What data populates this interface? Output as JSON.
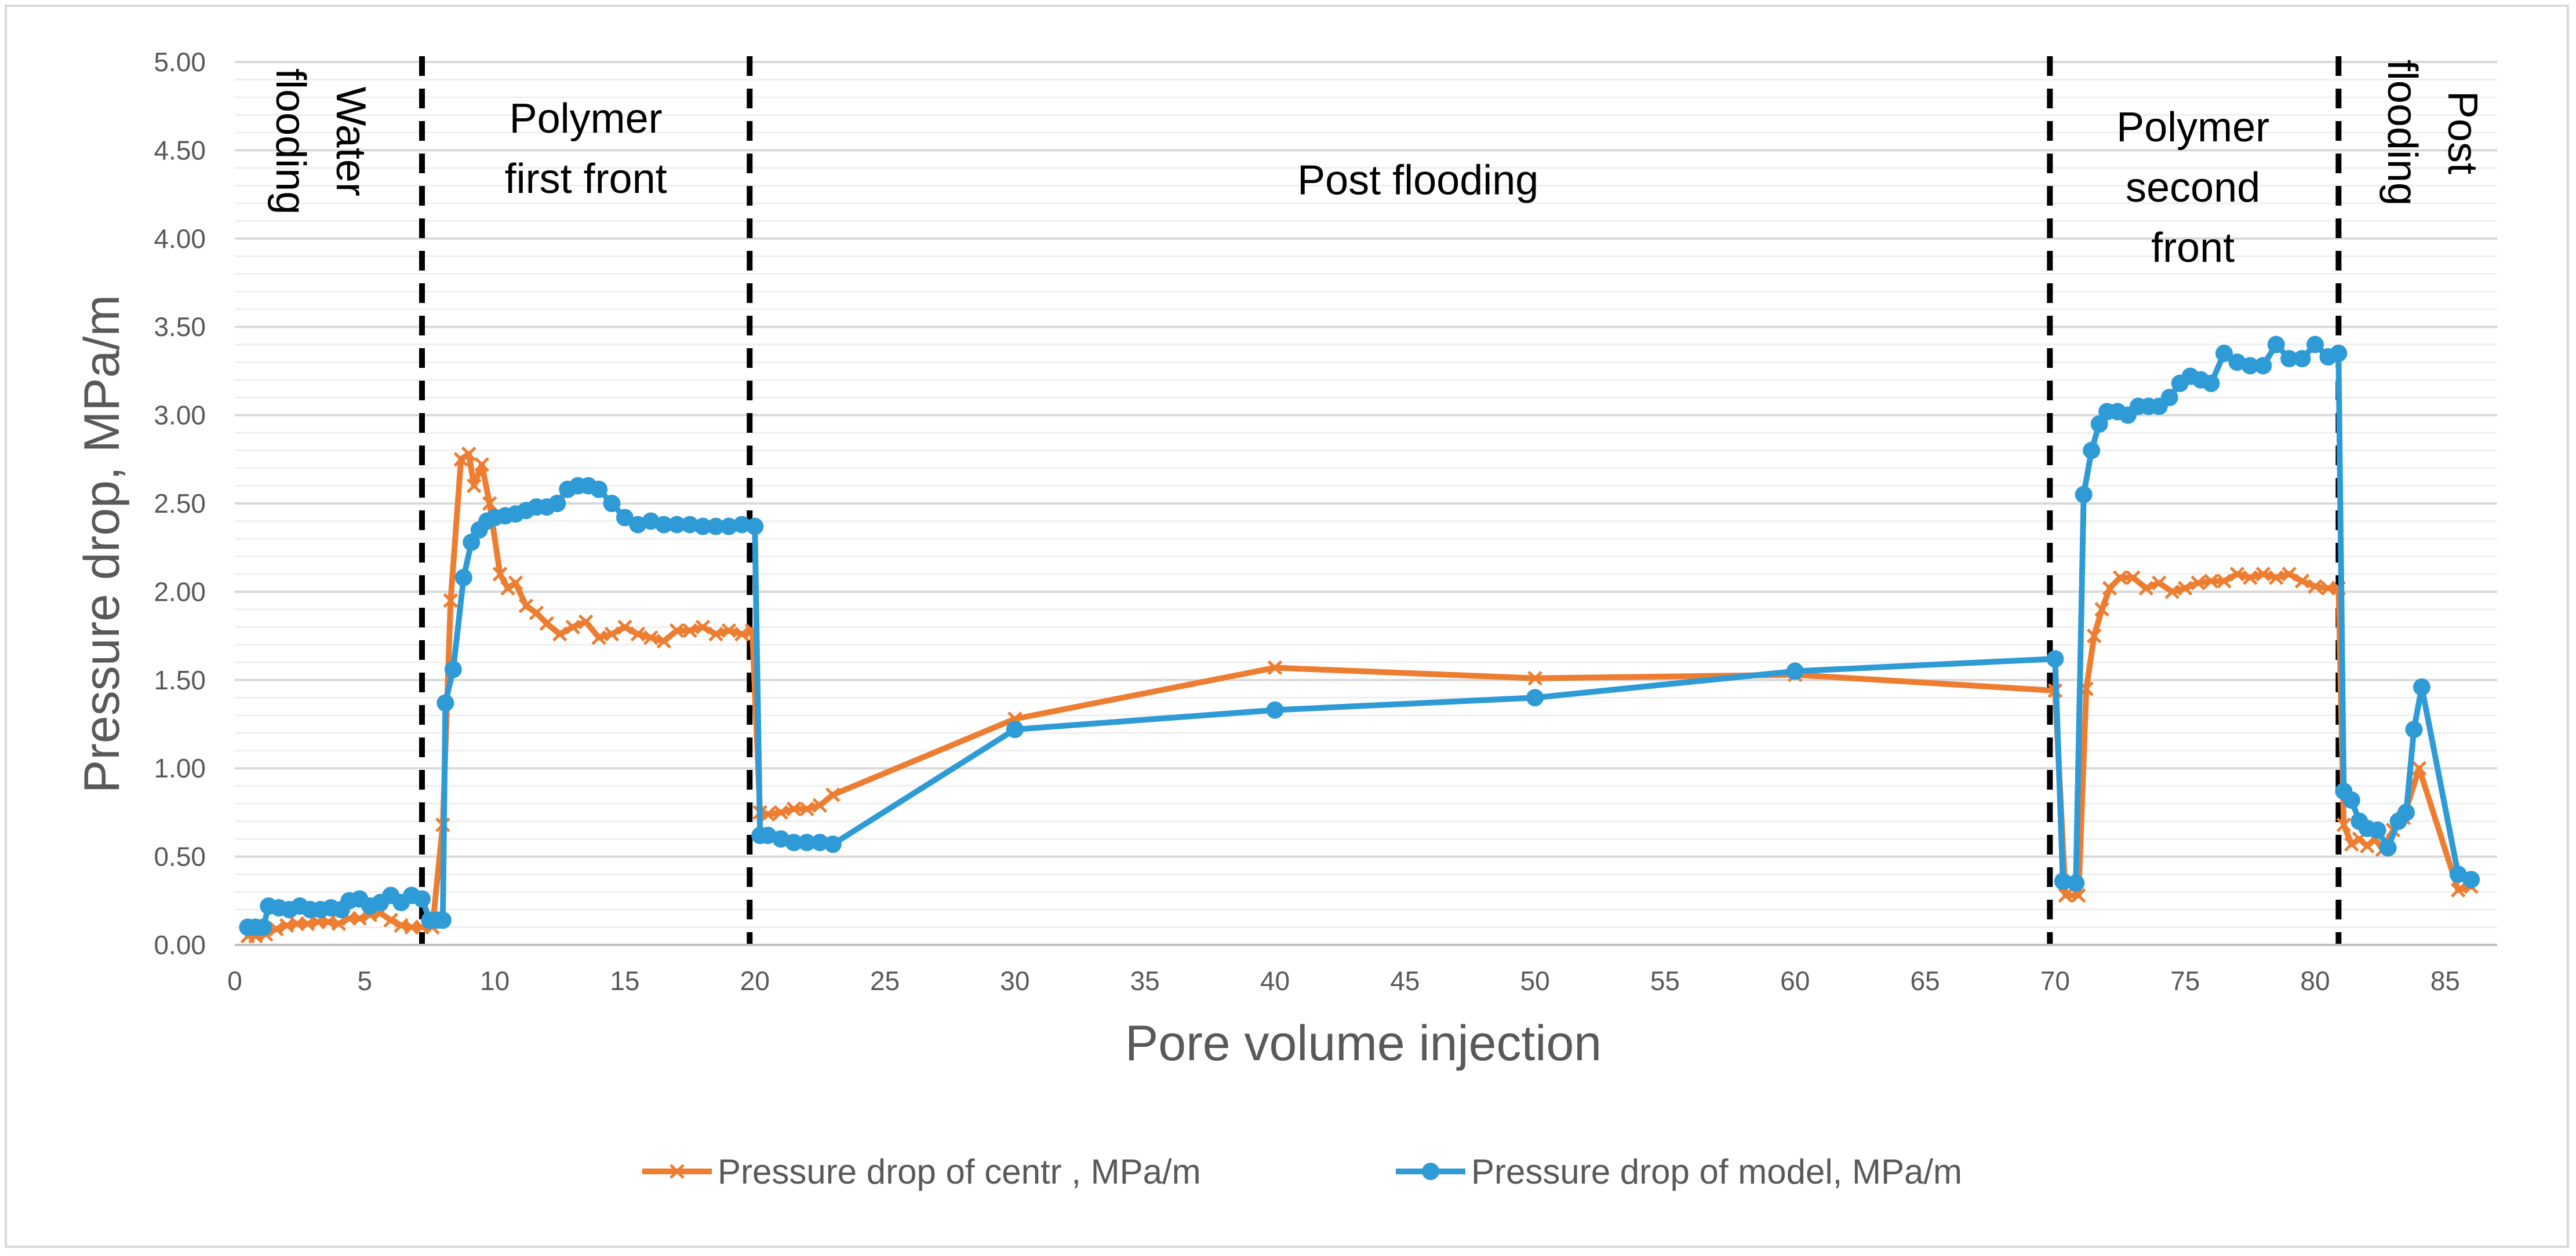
{
  "chart_data": {
    "type": "line",
    "title": "",
    "xlabel": "Pore volume injection",
    "ylabel": "Pressure drop, MPa/m",
    "xlim": [
      0,
      87
    ],
    "ylim": [
      0,
      5
    ],
    "x_ticks": [
      0,
      5,
      10,
      15,
      20,
      25,
      30,
      35,
      40,
      45,
      50,
      55,
      60,
      65,
      70,
      75,
      80,
      85
    ],
    "x_tick_labels": [
      "0",
      "5",
      "10",
      "15",
      "20",
      "25",
      "30",
      "35",
      "40",
      "45",
      "50",
      "55",
      "60",
      "65",
      "70",
      "75",
      "80",
      "85"
    ],
    "y_ticks": [
      0,
      0.5,
      1,
      1.5,
      2,
      2.5,
      3,
      3.5,
      4,
      4.5,
      5
    ],
    "y_tick_labels": [
      "0.00",
      "0.50",
      "1.00",
      "1.50",
      "2.00",
      "2.50",
      "3.00",
      "3.50",
      "4.00",
      "4.50",
      "5.00"
    ],
    "minor_grid_step": 0.1,
    "legend_position": "bottom",
    "dividers": [
      7.2,
      19.8,
      69.8,
      80.9
    ],
    "regions": [
      {
        "lines": [
          "Water",
          "flooding"
        ],
        "rotate": 90,
        "x": 3.3,
        "y": 4.55
      },
      {
        "lines": [
          "Polymer",
          "first front"
        ],
        "rotate": 0,
        "x": 13.5,
        "y": 4.6
      },
      {
        "lines": [
          "Post flooding"
        ],
        "rotate": 0,
        "x": 45.5,
        "y": 4.25
      },
      {
        "lines": [
          "Polymer",
          "second",
          "front"
        ],
        "rotate": 0,
        "x": 75.3,
        "y": 4.55
      },
      {
        "lines": [
          "Post",
          "flooding"
        ],
        "rotate": 90,
        "x": 84.5,
        "y": 4.6
      }
    ],
    "series": [
      {
        "name": "Pressure drop of centr , MPa/m",
        "color": "#ED7D31",
        "marker": "x",
        "points": [
          [
            0.5,
            0.05
          ],
          [
            0.8,
            0.05
          ],
          [
            1.2,
            0.06
          ],
          [
            1.6,
            0.09
          ],
          [
            2,
            0.11
          ],
          [
            2.4,
            0.12
          ],
          [
            2.8,
            0.12
          ],
          [
            3.2,
            0.13
          ],
          [
            3.6,
            0.13
          ],
          [
            4,
            0.12
          ],
          [
            4.4,
            0.15
          ],
          [
            4.8,
            0.15
          ],
          [
            5.2,
            0.17
          ],
          [
            5.6,
            0.18
          ],
          [
            6,
            0.14
          ],
          [
            6.4,
            0.11
          ],
          [
            6.8,
            0.1
          ],
          [
            7.2,
            0.1
          ],
          [
            7.6,
            0.1
          ],
          [
            8,
            0.68
          ],
          [
            8.3,
            1.95
          ],
          [
            8.7,
            2.75
          ],
          [
            9,
            2.78
          ],
          [
            9.2,
            2.6
          ],
          [
            9.5,
            2.72
          ],
          [
            9.8,
            2.5
          ],
          [
            10.2,
            2.1
          ],
          [
            10.5,
            2.02
          ],
          [
            10.8,
            2.05
          ],
          [
            11.2,
            1.92
          ],
          [
            11.6,
            1.88
          ],
          [
            12,
            1.82
          ],
          [
            12.5,
            1.76
          ],
          [
            13,
            1.8
          ],
          [
            13.5,
            1.83
          ],
          [
            14,
            1.74
          ],
          [
            14.5,
            1.76
          ],
          [
            15,
            1.8
          ],
          [
            15.5,
            1.76
          ],
          [
            16,
            1.74
          ],
          [
            16.5,
            1.72
          ],
          [
            17,
            1.78
          ],
          [
            17.5,
            1.78
          ],
          [
            18,
            1.8
          ],
          [
            18.5,
            1.76
          ],
          [
            19,
            1.78
          ],
          [
            19.5,
            1.76
          ],
          [
            19.9,
            1.78
          ],
          [
            20.2,
            0.75
          ],
          [
            20.5,
            0.74
          ],
          [
            21,
            0.75
          ],
          [
            21.5,
            0.77
          ],
          [
            22,
            0.77
          ],
          [
            22.5,
            0.79
          ],
          [
            23,
            0.85
          ],
          [
            30,
            1.28
          ],
          [
            40,
            1.57
          ],
          [
            50,
            1.51
          ],
          [
            60,
            1.53
          ],
          [
            70,
            1.44
          ],
          [
            70.4,
            0.28
          ],
          [
            70.9,
            0.28
          ],
          [
            71.2,
            1.45
          ],
          [
            71.5,
            1.75
          ],
          [
            71.8,
            1.9
          ],
          [
            72.1,
            2.02
          ],
          [
            72.5,
            2.08
          ],
          [
            73,
            2.08
          ],
          [
            73.5,
            2.02
          ],
          [
            74,
            2.05
          ],
          [
            74.5,
            2.0
          ],
          [
            75,
            2.02
          ],
          [
            75.5,
            2.05
          ],
          [
            76,
            2.06
          ],
          [
            76.5,
            2.06
          ],
          [
            77,
            2.1
          ],
          [
            77.5,
            2.08
          ],
          [
            78,
            2.1
          ],
          [
            78.5,
            2.08
          ],
          [
            79,
            2.1
          ],
          [
            79.5,
            2.06
          ],
          [
            80,
            2.03
          ],
          [
            80.5,
            2.02
          ],
          [
            80.9,
            2.02
          ],
          [
            81.1,
            0.68
          ],
          [
            81.4,
            0.57
          ],
          [
            81.7,
            0.6
          ],
          [
            82,
            0.56
          ],
          [
            82.3,
            0.6
          ],
          [
            82.6,
            0.54
          ],
          [
            83,
            0.65
          ],
          [
            83.4,
            0.72
          ],
          [
            84,
            1.0
          ],
          [
            85.5,
            0.31
          ],
          [
            86,
            0.33
          ]
        ]
      },
      {
        "name": "Pressure drop of model, MPa/m",
        "color": "#2E9BD6",
        "marker": "circle",
        "points": [
          [
            0.5,
            0.1
          ],
          [
            0.8,
            0.1
          ],
          [
            1.1,
            0.1
          ],
          [
            1.3,
            0.22
          ],
          [
            1.7,
            0.21
          ],
          [
            2.1,
            0.2
          ],
          [
            2.5,
            0.22
          ],
          [
            2.9,
            0.2
          ],
          [
            3.3,
            0.2
          ],
          [
            3.7,
            0.21
          ],
          [
            4.1,
            0.2
          ],
          [
            4.4,
            0.25
          ],
          [
            4.8,
            0.26
          ],
          [
            5.2,
            0.22
          ],
          [
            5.6,
            0.24
          ],
          [
            6,
            0.28
          ],
          [
            6.4,
            0.24
          ],
          [
            6.8,
            0.28
          ],
          [
            7.2,
            0.26
          ],
          [
            7.5,
            0.14
          ],
          [
            7.8,
            0.14
          ],
          [
            8,
            0.14
          ],
          [
            8.1,
            1.37
          ],
          [
            8.4,
            1.56
          ],
          [
            8.8,
            2.08
          ],
          [
            9.1,
            2.28
          ],
          [
            9.4,
            2.35
          ],
          [
            9.7,
            2.4
          ],
          [
            10,
            2.42
          ],
          [
            10.4,
            2.43
          ],
          [
            10.8,
            2.44
          ],
          [
            11.2,
            2.46
          ],
          [
            11.6,
            2.48
          ],
          [
            12,
            2.48
          ],
          [
            12.4,
            2.5
          ],
          [
            12.8,
            2.58
          ],
          [
            13.2,
            2.6
          ],
          [
            13.6,
            2.6
          ],
          [
            14,
            2.58
          ],
          [
            14.5,
            2.5
          ],
          [
            15,
            2.42
          ],
          [
            15.5,
            2.38
          ],
          [
            16,
            2.4
          ],
          [
            16.5,
            2.38
          ],
          [
            17,
            2.38
          ],
          [
            17.5,
            2.38
          ],
          [
            18,
            2.37
          ],
          [
            18.5,
            2.37
          ],
          [
            19,
            2.37
          ],
          [
            19.5,
            2.38
          ],
          [
            20,
            2.37
          ],
          [
            20.2,
            0.62
          ],
          [
            20.5,
            0.62
          ],
          [
            21,
            0.6
          ],
          [
            21.5,
            0.58
          ],
          [
            22,
            0.58
          ],
          [
            22.5,
            0.58
          ],
          [
            23,
            0.57
          ],
          [
            30,
            1.22
          ],
          [
            40,
            1.33
          ],
          [
            50,
            1.4
          ],
          [
            60,
            1.55
          ],
          [
            70,
            1.62
          ],
          [
            70.3,
            0.36
          ],
          [
            70.8,
            0.35
          ],
          [
            71.1,
            2.55
          ],
          [
            71.4,
            2.8
          ],
          [
            71.7,
            2.95
          ],
          [
            72,
            3.02
          ],
          [
            72.4,
            3.02
          ],
          [
            72.8,
            3.0
          ],
          [
            73.2,
            3.05
          ],
          [
            73.6,
            3.05
          ],
          [
            74,
            3.05
          ],
          [
            74.4,
            3.1
          ],
          [
            74.8,
            3.18
          ],
          [
            75.2,
            3.22
          ],
          [
            75.6,
            3.2
          ],
          [
            76,
            3.18
          ],
          [
            76.5,
            3.35
          ],
          [
            77,
            3.3
          ],
          [
            77.5,
            3.28
          ],
          [
            78,
            3.28
          ],
          [
            78.5,
            3.4
          ],
          [
            79,
            3.32
          ],
          [
            79.5,
            3.32
          ],
          [
            80,
            3.4
          ],
          [
            80.5,
            3.33
          ],
          [
            80.9,
            3.35
          ],
          [
            81.1,
            0.87
          ],
          [
            81.4,
            0.82
          ],
          [
            81.7,
            0.7
          ],
          [
            82,
            0.66
          ],
          [
            82.4,
            0.65
          ],
          [
            82.8,
            0.55
          ],
          [
            83.2,
            0.7
          ],
          [
            83.5,
            0.75
          ],
          [
            83.8,
            1.22
          ],
          [
            84.1,
            1.46
          ],
          [
            85.5,
            0.4
          ],
          [
            86,
            0.37
          ]
        ]
      }
    ]
  }
}
